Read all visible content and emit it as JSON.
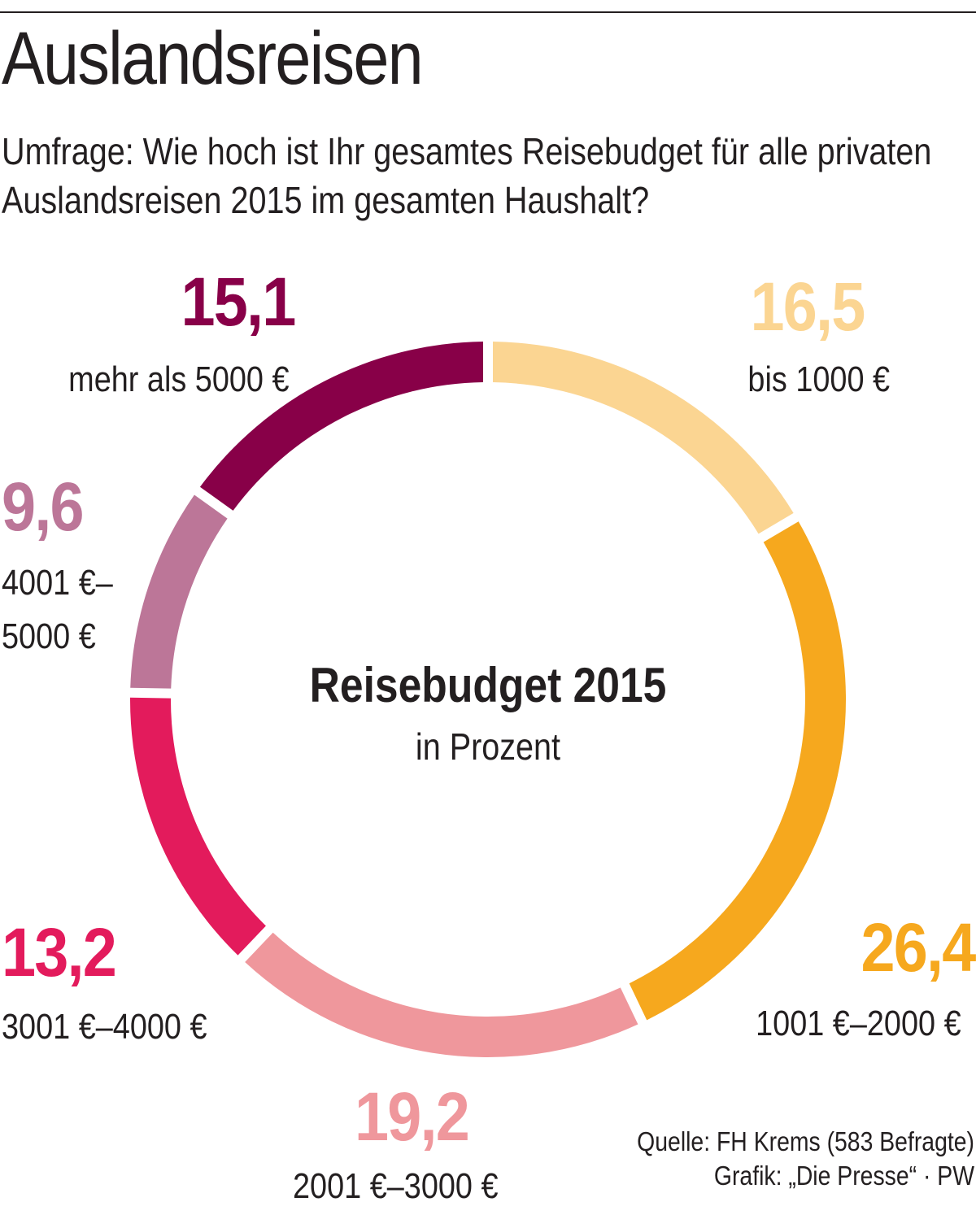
{
  "title": "Auslandsreisen",
  "subtitle": "Umfrage: Wie hoch ist Ihr gesamtes Reisebudget für alle privaten Auslandsreisen 2015 im gesamten Haushalt?",
  "chart_data": {
    "type": "pie",
    "variant": "donut",
    "center_title": "Reisebudget 2015",
    "center_subtitle": "in Prozent",
    "slices": [
      {
        "value": 16.5,
        "value_label": "16,5",
        "label": "bis 1000 €",
        "color": "#fbd592"
      },
      {
        "value": 26.4,
        "value_label": "26,4",
        "label": "1001 €–2000 €",
        "color": "#f6a81e"
      },
      {
        "value": 19.2,
        "value_label": "19,2",
        "label": "2001 €–3000 €",
        "color": "#ef979c"
      },
      {
        "value": 13.2,
        "value_label": "13,2",
        "label": "3001 €–4000 €",
        "color": "#e31b5c"
      },
      {
        "value": 9.6,
        "value_label": "9,6",
        "label_lines": [
          "4001 €–",
          "5000 €"
        ],
        "color": "#bc7698"
      },
      {
        "value": 15.1,
        "value_label": "15,1",
        "label": "mehr als 5000 €",
        "color": "#880048"
      }
    ]
  },
  "source": {
    "line1": "Quelle: FH Krems (583 Befragte)",
    "line2": "Grafik: „Die Presse“ · PW"
  }
}
